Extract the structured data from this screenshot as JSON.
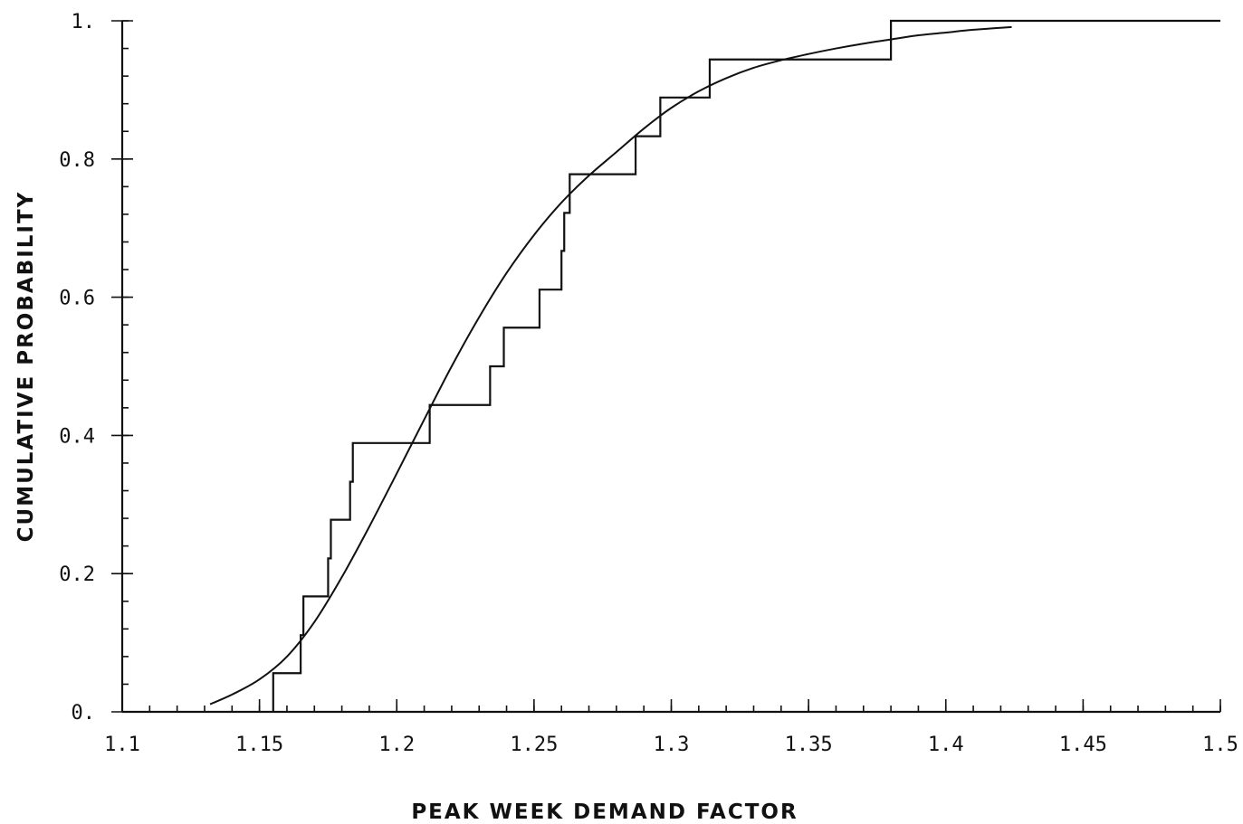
{
  "chart_data": {
    "type": "line",
    "title": "",
    "xlabel": "PEAK WEEK DEMAND FACTOR",
    "ylabel": "CUMULATIVE PROBABILITY",
    "xlim": [
      1.1,
      1.5
    ],
    "ylim": [
      0,
      1
    ],
    "grid": false,
    "x_ticks": [
      1.1,
      1.15,
      1.2,
      1.25,
      1.3,
      1.35,
      1.4,
      1.45,
      1.5
    ],
    "x_tick_labels": [
      "1.1",
      "1.15",
      "1.2",
      "1.25",
      "1.3",
      "1.35",
      "1.4",
      "1.45",
      "1.5"
    ],
    "y_ticks": [
      0,
      0.2,
      0.4,
      0.6,
      0.8,
      1.0
    ],
    "y_tick_labels": [
      "0.",
      "0.2",
      "0.4",
      "0.6",
      "0.8",
      "1."
    ],
    "x_minor_step": 0.01,
    "y_minor_step": 0.04,
    "series": [
      {
        "kind": "step",
        "x": [
          1.155,
          1.165,
          1.166,
          1.175,
          1.176,
          1.183,
          1.184,
          1.212,
          1.234,
          1.239,
          1.252,
          1.26,
          1.261,
          1.263,
          1.287,
          1.296,
          1.314,
          1.38,
          1.5
        ],
        "y": [
          0.056,
          0.111,
          0.167,
          0.222,
          0.278,
          0.333,
          0.389,
          0.444,
          0.5,
          0.556,
          0.611,
          0.667,
          0.722,
          0.778,
          0.833,
          0.889,
          0.944,
          1.0,
          1.0
        ]
      },
      {
        "kind": "curve",
        "x": [
          1.132,
          1.14,
          1.15,
          1.16,
          1.17,
          1.18,
          1.19,
          1.2,
          1.21,
          1.22,
          1.23,
          1.24,
          1.25,
          1.26,
          1.27,
          1.28,
          1.29,
          1.3,
          1.31,
          1.32,
          1.33,
          1.34,
          1.35,
          1.36,
          1.37,
          1.38,
          1.39,
          1.4,
          1.41,
          1.424
        ],
        "y": [
          0.011,
          0.025,
          0.047,
          0.08,
          0.13,
          0.195,
          0.268,
          0.345,
          0.423,
          0.5,
          0.571,
          0.635,
          0.69,
          0.737,
          0.776,
          0.81,
          0.844,
          0.874,
          0.898,
          0.917,
          0.932,
          0.943,
          0.952,
          0.96,
          0.967,
          0.973,
          0.979,
          0.983,
          0.987,
          0.991
        ]
      }
    ]
  }
}
